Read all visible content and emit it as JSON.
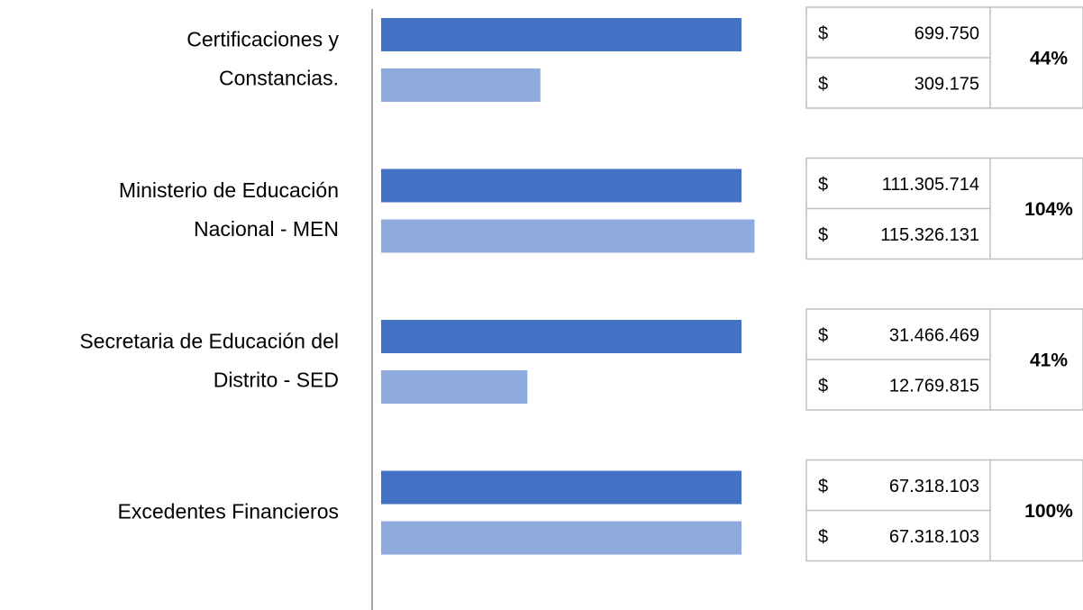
{
  "chart_data": {
    "type": "bar",
    "categories": [
      [
        "Certificaciones y",
        "Constancias."
      ],
      [
        "Ministerio de Educación",
        "Nacional - MEN"
      ],
      [
        "Secretaria de Educación del",
        "Distrito - SED"
      ],
      [
        "Excedentes Financieros"
      ]
    ],
    "currency": "$",
    "series": [
      {
        "color": "#4472c4",
        "values": [
          699750,
          111305714,
          31466469,
          67318103
        ],
        "value_labels": [
          "699.750",
          "111.305.714",
          "31.466.469",
          "67.318.103"
        ]
      },
      {
        "color": "#8faadc",
        "values": [
          309175,
          115326131,
          12769815,
          67318103
        ],
        "value_labels": [
          "309.175",
          "115.326.131",
          "12.769.815",
          "67.318.103"
        ]
      }
    ],
    "ratio_labels": [
      "44%",
      "104%",
      "41%",
      "100%"
    ]
  }
}
